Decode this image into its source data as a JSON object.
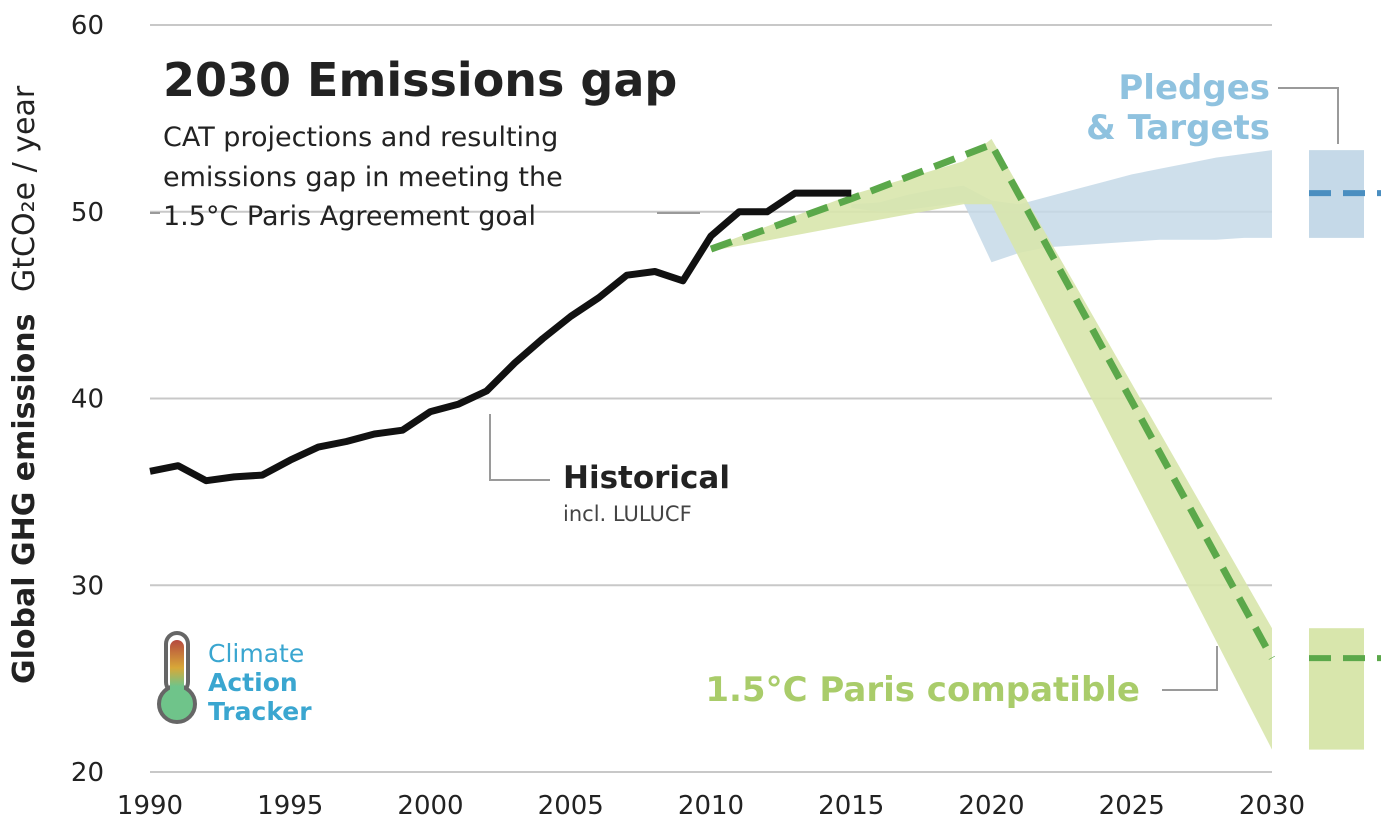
{
  "title": "2030 Emissions gap",
  "subtitle_lines": [
    "CAT projections and resulting",
    "emissions gap in meeting the",
    "1.5°C Paris Agreement goal"
  ],
  "y_axis_label_main": "Global GHG  emissions",
  "y_axis_label_unit": "GtCO₂e / year",
  "labels": {
    "historical": "Historical",
    "historical_sub": "incl. LULUCF",
    "pledges_line1": "Pledges",
    "pledges_line2": "& Targets",
    "paris": "1.5°C Paris compatible"
  },
  "logo": {
    "line1": "Climate",
    "line2": "Action",
    "line3": "Tracker",
    "icon": "thermometer-icon"
  },
  "colors": {
    "historical": "#111111",
    "pledges_band": "#c5d9e8",
    "pledges_mid": "#4a8ec0",
    "pledges_text": "#8fc2df",
    "paris_band": "#d8e6ac",
    "paris_mid": "#5ba84a",
    "paris_text": "#a9cc6a",
    "grid": "#c8c8c8",
    "logo_text": "#3aa6d0"
  },
  "chart_data": {
    "type": "line",
    "xlim": [
      1990,
      2030
    ],
    "ylim": [
      20,
      60
    ],
    "xticks": [
      "1990",
      "1995",
      "2000",
      "2005",
      "2010",
      "2015",
      "2020",
      "2025",
      "2030"
    ],
    "yticks": [
      "20",
      "30",
      "40",
      "50",
      "60"
    ],
    "grid": "horizontal",
    "historical": {
      "x": [
        1990,
        1991,
        1992,
        1993,
        1994,
        1995,
        1996,
        1997,
        1998,
        1999,
        2000,
        2001,
        2002,
        2003,
        2004,
        2005,
        2006,
        2007,
        2008,
        2009,
        2010,
        2011,
        2012,
        2013,
        2014,
        2015
      ],
      "y": [
        36.1,
        36.4,
        35.6,
        35.8,
        35.9,
        36.7,
        37.4,
        37.7,
        38.1,
        38.3,
        39.3,
        39.7,
        40.4,
        41.9,
        43.2,
        44.4,
        45.4,
        46.6,
        46.8,
        46.3,
        48.7,
        50.0,
        50.0,
        51.0,
        51.0,
        51.0
      ]
    },
    "pledges_band": {
      "x": [
        2015,
        2016,
        2017,
        2018,
        2019,
        2020,
        2021,
        2022,
        2023,
        2024,
        2025,
        2026,
        2027,
        2028,
        2029,
        2030
      ],
      "upper": [
        50.4,
        50.5,
        50.9,
        51.2,
        51.4,
        50.6,
        50.4,
        50.8,
        51.2,
        51.6,
        52.0,
        52.3,
        52.6,
        52.9,
        53.1,
        53.3
      ],
      "lower": [
        50.2,
        50.0,
        50.1,
        50.3,
        50.5,
        47.3,
        47.8,
        48.1,
        48.2,
        48.3,
        48.4,
        48.5,
        48.5,
        48.5,
        48.6,
        48.6
      ]
    },
    "pledges_2030": {
      "upper": 53.3,
      "lower": 48.6,
      "mid": 51.0
    },
    "paris_band": {
      "x": [
        2010,
        2015,
        2019,
        2020,
        2030
      ],
      "upper": [
        48.1,
        50.9,
        52.7,
        53.9,
        27.7
      ],
      "lower": [
        47.9,
        49.3,
        50.4,
        50.4,
        21.2
      ]
    },
    "paris_mid": {
      "x": [
        2010,
        2015,
        2020,
        2030
      ],
      "y": [
        48.0,
        50.7,
        53.6,
        26.1
      ]
    },
    "paris_2030": {
      "upper": 27.7,
      "lower": 21.2,
      "mid": 26.1
    }
  }
}
